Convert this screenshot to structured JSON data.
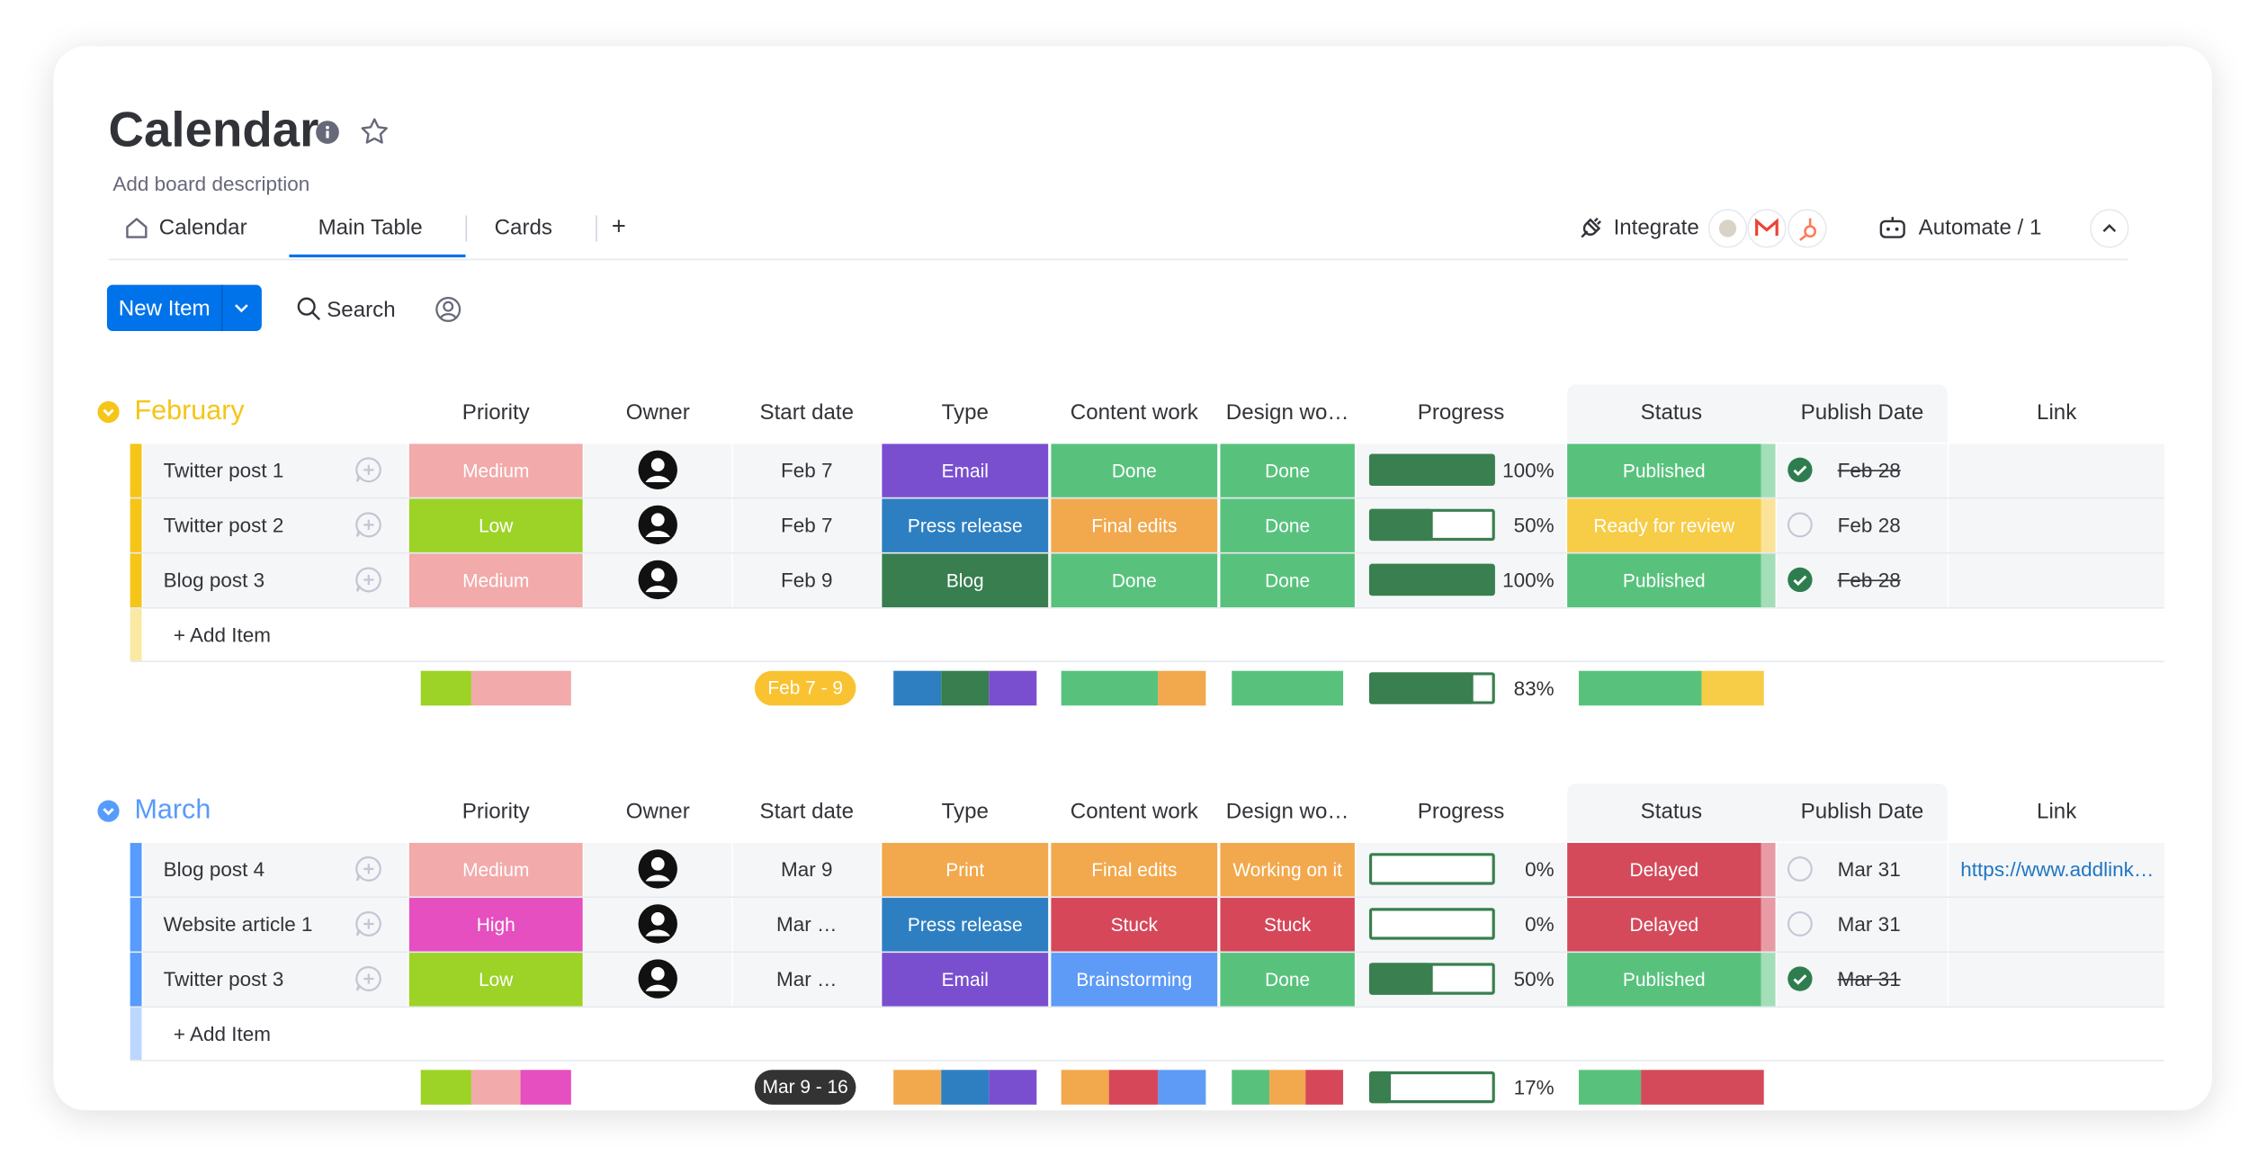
{
  "header": {
    "title": "Calendar",
    "description": "Add board description"
  },
  "tabs": [
    "Calendar",
    "Main Table",
    "Cards"
  ],
  "tab_add": "+",
  "toolbar": {
    "integrate": "Integrate",
    "automate": "Automate / 1",
    "new_item": "New Item",
    "search": "Search"
  },
  "palette": {
    "Low": "#9cd326",
    "Medium": "#f2aaaa",
    "High": "#e54fbf",
    "Print": "#f2a84c",
    "Press release": "#2d7fc1",
    "Blog": "#387e4f",
    "Email": "#7a4fcf",
    "Done": "#58c27d",
    "Working on it": "#f2a84c",
    "Final edits": "#f2a84c",
    "Stuck": "#d6475a",
    "Brainstorming": "#5d9bf7",
    "Published": "#58c27d",
    "Ready for review": "#f7cc46",
    "Delayed": "#d44a5b"
  },
  "groups": [
    {
      "name": "February",
      "color": "#f5c518",
      "columns": [
        "Priority",
        "Owner",
        "Start date",
        "Type",
        "Content work",
        "Design wo…",
        "Progress",
        "Status",
        "Publish Date",
        "Link"
      ],
      "rows": [
        {
          "name": "Twitter post 1",
          "priority": "Medium",
          "start": "Feb 7",
          "type": "Email",
          "content": "Done",
          "design": "Done",
          "progress": {
            "value": 100,
            "label": "100%"
          },
          "status": "Published",
          "done": true,
          "publish": "Feb 28"
        },
        {
          "name": "Twitter post 2",
          "priority": "Low",
          "start": "Feb 7",
          "type": "Press release",
          "content": "Final edits",
          "design": "Done",
          "progress": {
            "value": 50,
            "label": "50%"
          },
          "status": "Ready for review",
          "done": false,
          "publish": "Feb 28"
        },
        {
          "name": "Blog post 3",
          "priority": "Medium",
          "start": "Feb 9",
          "type": "Blog",
          "content": "Done",
          "design": "Done",
          "progress": {
            "value": 100,
            "label": "100%"
          },
          "status": "Published",
          "done": true,
          "publish": "Feb 28"
        }
      ],
      "add_item": "+ Add Item",
      "summary": {
        "dates": "Feb 7 - 9",
        "dates_color": "#f9c230",
        "progress": {
          "value": 83,
          "label": "83%"
        }
      }
    },
    {
      "name": "March",
      "color": "#579bfc",
      "columns": [
        "Priority",
        "Owner",
        "Start date",
        "Type",
        "Content work",
        "Design wo…",
        "Progress",
        "Status",
        "Publish Date",
        "Link"
      ],
      "rows": [
        {
          "name": "Blog post 4",
          "priority": "Medium",
          "start": "Mar 9",
          "type": "Print",
          "content": "Final edits",
          "design": "Working on it",
          "progress": {
            "value": 0,
            "label": "0%"
          },
          "status": "Delayed",
          "done": false,
          "publish": "Mar 31",
          "link": "https://www.addlink…"
        },
        {
          "name": "Website article 1",
          "priority": "High",
          "start": "Mar …",
          "type": "Press release",
          "content": "Stuck",
          "design": "Stuck",
          "progress": {
            "value": 0,
            "label": "0%"
          },
          "status": "Delayed",
          "done": false,
          "publish": "Mar 31"
        },
        {
          "name": "Twitter post 3",
          "priority": "Low",
          "start": "Mar …",
          "type": "Email",
          "content": "Brainstorming",
          "design": "Done",
          "progress": {
            "value": 50,
            "label": "50%"
          },
          "status": "Published",
          "done": true,
          "publish": "Mar 31"
        }
      ],
      "add_item": "+ Add Item",
      "summary": {
        "dates": "Mar 9 - 16",
        "dates_color": "#333333",
        "progress": {
          "value": 17,
          "label": "17%"
        }
      }
    }
  ]
}
